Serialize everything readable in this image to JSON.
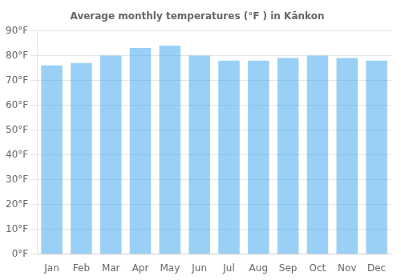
{
  "chart_data": {
    "type": "bar",
    "title": "Average monthly temperatures (°F ) in Kānkon",
    "categories": [
      "Jan",
      "Feb",
      "Mar",
      "Apr",
      "May",
      "Jun",
      "Jul",
      "Aug",
      "Sep",
      "Oct",
      "Nov",
      "Dec"
    ],
    "values": [
      76,
      77,
      80,
      83,
      84,
      80,
      78,
      78,
      79,
      80,
      79,
      78
    ],
    "ylim": [
      0,
      90
    ],
    "yticks": [
      {
        "value": 0,
        "label": "0°F"
      },
      {
        "value": 10,
        "label": "10°F"
      },
      {
        "value": 20,
        "label": "20°F"
      },
      {
        "value": 30,
        "label": "30°F"
      },
      {
        "value": 40,
        "label": "40°F"
      },
      {
        "value": 50,
        "label": "50°F"
      },
      {
        "value": 60,
        "label": "60°F"
      },
      {
        "value": 70,
        "label": "70°F"
      },
      {
        "value": 80,
        "label": "80°F"
      },
      {
        "value": 90,
        "label": "90°F"
      }
    ],
    "grid": true
  }
}
